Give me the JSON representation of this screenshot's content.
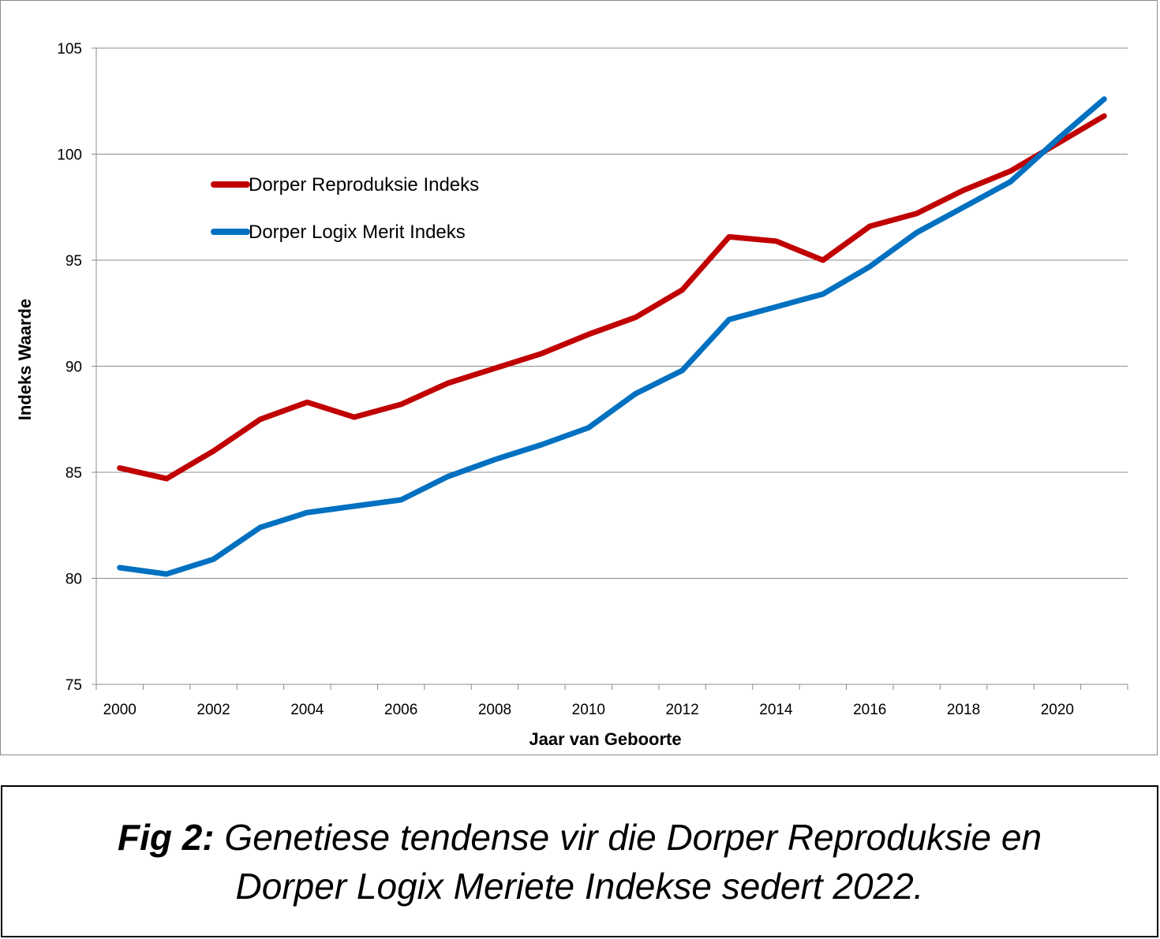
{
  "chart_data": {
    "type": "line",
    "xlabel": "Jaar van Geboorte",
    "ylabel": "Indeks Waarde",
    "ylim": [
      75,
      105
    ],
    "yticks": [
      75,
      80,
      85,
      90,
      95,
      100,
      105
    ],
    "xlim": [
      1999.5,
      2021.5
    ],
    "xticks": [
      2000,
      2002,
      2004,
      2006,
      2008,
      2010,
      2012,
      2014,
      2016,
      2018,
      2020
    ],
    "grid": "horizontal",
    "legend_position": "top-left",
    "x": [
      2000,
      2001,
      2002,
      2003,
      2004,
      2005,
      2006,
      2007,
      2008,
      2009,
      2010,
      2011,
      2012,
      2013,
      2014,
      2015,
      2016,
      2017,
      2018,
      2019,
      2020,
      2021
    ],
    "series": [
      {
        "name": "Dorper Reproduksie Indeks",
        "color": "#c00000",
        "values": [
          85.2,
          84.7,
          86.0,
          87.5,
          88.3,
          87.6,
          88.2,
          89.2,
          89.9,
          90.6,
          91.5,
          92.3,
          93.6,
          96.1,
          95.9,
          95.0,
          96.6,
          97.2,
          98.3,
          99.2,
          100.5,
          101.8
        ]
      },
      {
        "name": "Dorper Logix Merit Indeks",
        "color": "#0070c0",
        "values": [
          80.5,
          80.2,
          80.9,
          82.4,
          83.1,
          83.4,
          83.7,
          84.8,
          85.6,
          86.3,
          87.1,
          88.7,
          89.8,
          92.2,
          92.8,
          93.4,
          94.7,
          96.3,
          97.5,
          98.7,
          100.7,
          102.6
        ]
      }
    ]
  },
  "caption": {
    "label": "Fig 2:",
    "line1": "Genetiese tendense vir die Dorper Reproduksie en",
    "line2": "Dorper Logix Meriete Indekse sedert 2022."
  }
}
